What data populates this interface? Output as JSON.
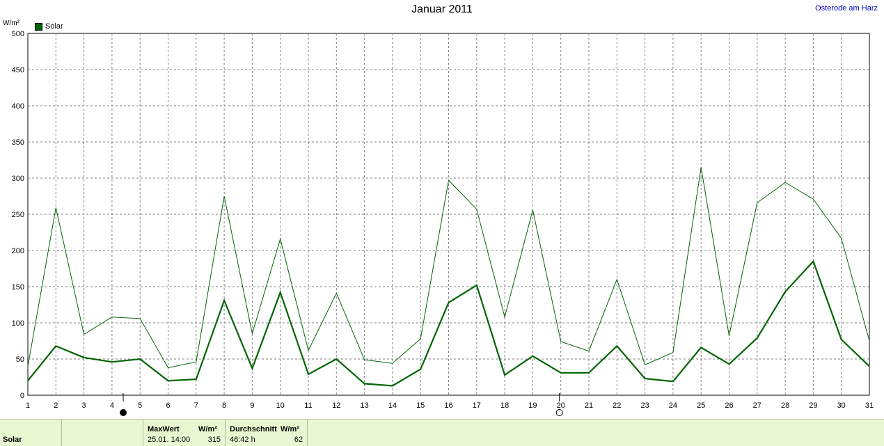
{
  "header": {
    "title": "Januar 2011",
    "location": "Osterode am Harz",
    "unit": "W/m²"
  },
  "legend": {
    "label": "Solar",
    "color": "#006400"
  },
  "chart_data": {
    "type": "line",
    "title": "Januar 2011",
    "x": [
      1,
      2,
      3,
      4,
      5,
      6,
      7,
      8,
      9,
      10,
      11,
      12,
      13,
      14,
      15,
      16,
      17,
      18,
      19,
      20,
      21,
      22,
      23,
      24,
      25,
      26,
      27,
      28,
      29,
      30,
      31
    ],
    "xlim": [
      1,
      31
    ],
    "ylim": [
      0,
      500
    ],
    "yticks": [
      0,
      50,
      100,
      150,
      200,
      250,
      300,
      350,
      400,
      450,
      500
    ],
    "ylabel": "W/m²",
    "grid": true,
    "legend_position": "top-left",
    "series": [
      {
        "name": "Solar",
        "color": "#006400",
        "values": [
          20,
          68,
          52,
          46,
          50,
          20,
          22,
          131,
          37,
          142,
          29,
          50,
          16,
          13,
          36,
          128,
          152,
          28,
          54,
          31,
          31,
          68,
          23,
          19,
          66,
          43,
          79,
          143,
          185,
          77,
          40
        ]
      },
      {
        "name": "",
        "color": "#006400",
        "values": [
          40,
          259,
          84,
          108,
          106,
          38,
          46,
          275,
          85,
          216,
          62,
          141,
          49,
          44,
          78,
          297,
          257,
          108,
          256,
          74,
          61,
          160,
          42,
          59,
          315,
          82,
          266,
          294,
          271,
          217,
          75
        ]
      }
    ],
    "moon_markers": [
      {
        "day": 4.4,
        "phase": "new"
      },
      {
        "day": 19.95,
        "phase": "full"
      }
    ]
  },
  "footer": {
    "row_label": "Solar",
    "max_header": "MaxWert",
    "max_unit": "W/m²",
    "max_date": "25.01.  14:00",
    "max_value": "315",
    "avg_header": "Durchschnitt",
    "avg_unit": "W/m²",
    "avg_duration": "46:42 h",
    "avg_value": "62"
  }
}
